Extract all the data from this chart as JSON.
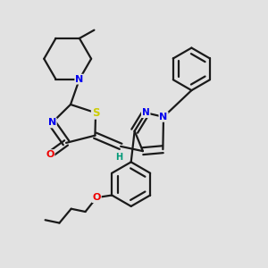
{
  "bg_color": "#e2e2e2",
  "bond_color": "#1a1a1a",
  "line_width": 1.6,
  "atom_colors": {
    "N": "#0000ee",
    "O": "#ee0000",
    "S": "#cccc00",
    "H": "#009977",
    "C": "#1a1a1a"
  },
  "font_size": 8.0
}
